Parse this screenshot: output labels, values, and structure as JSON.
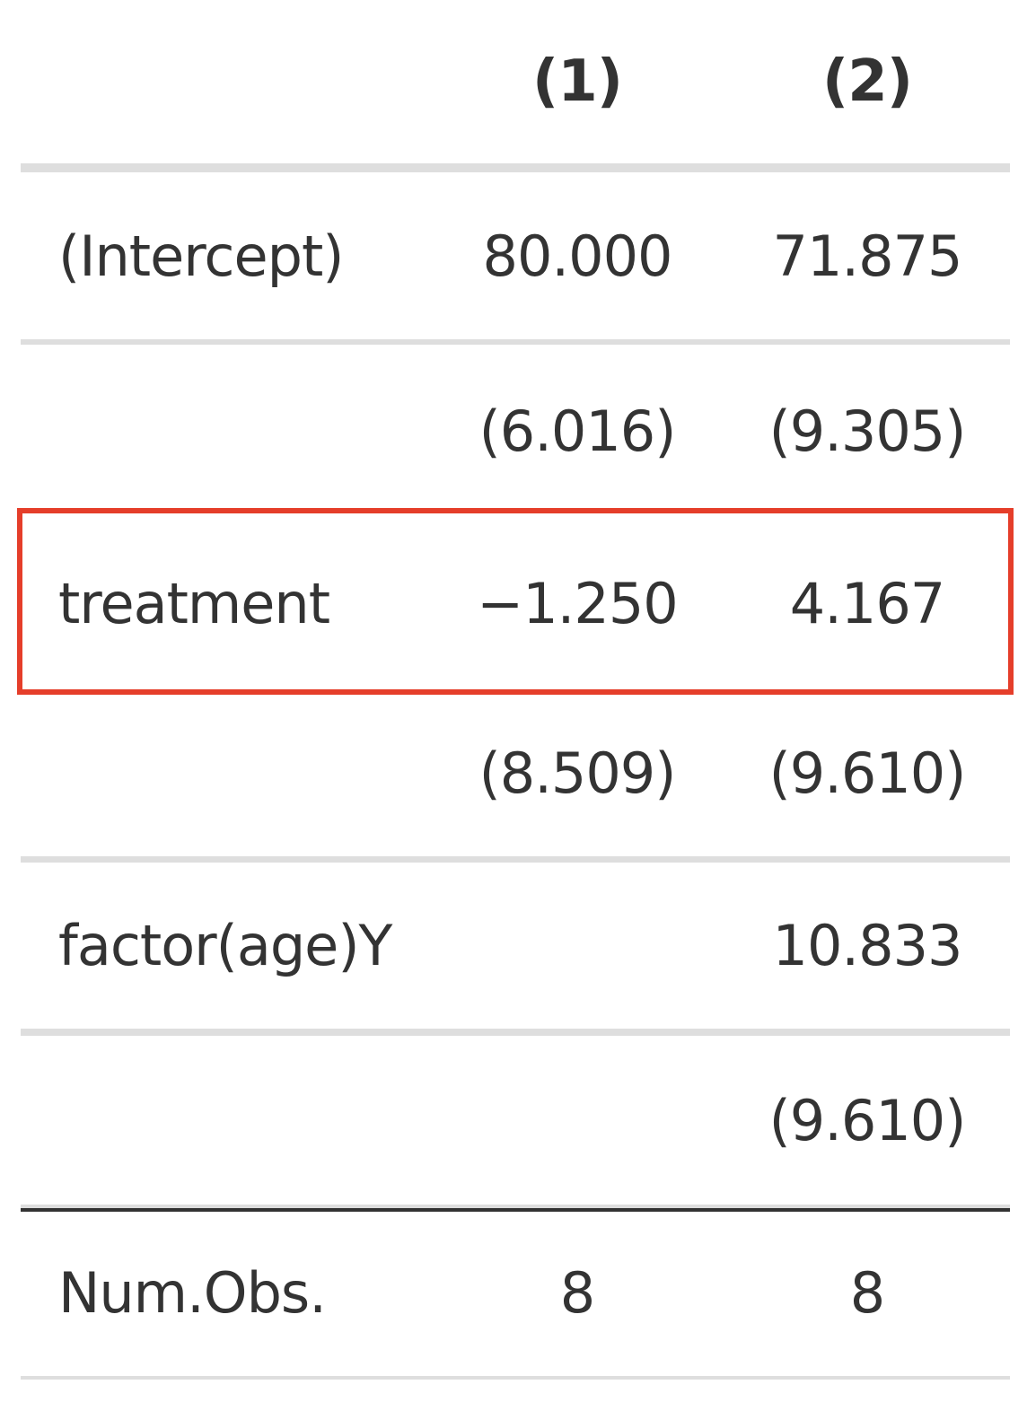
{
  "table": {
    "header": {
      "label": "",
      "col1": "(1)",
      "col2": "(2)"
    },
    "rows": [
      {
        "label": "(Intercept)",
        "col1": "80.000",
        "col2": "71.875"
      },
      {
        "label": "",
        "col1": "(6.016)",
        "col2": "(9.305)"
      },
      {
        "label": "treatment",
        "col1": "−1.250",
        "col2": "4.167"
      },
      {
        "label": "",
        "col1": "(8.509)",
        "col2": "(9.610)"
      },
      {
        "label": "factor(age)Y",
        "col1": "",
        "col2": "10.833"
      },
      {
        "label": "",
        "col1": "",
        "col2": "(9.610)"
      }
    ],
    "stats": [
      {
        "label": "Num.Obs.",
        "col1": "8",
        "col2": "8"
      }
    ]
  },
  "highlight": {
    "row": "treatment",
    "color": "#e53e2a"
  }
}
